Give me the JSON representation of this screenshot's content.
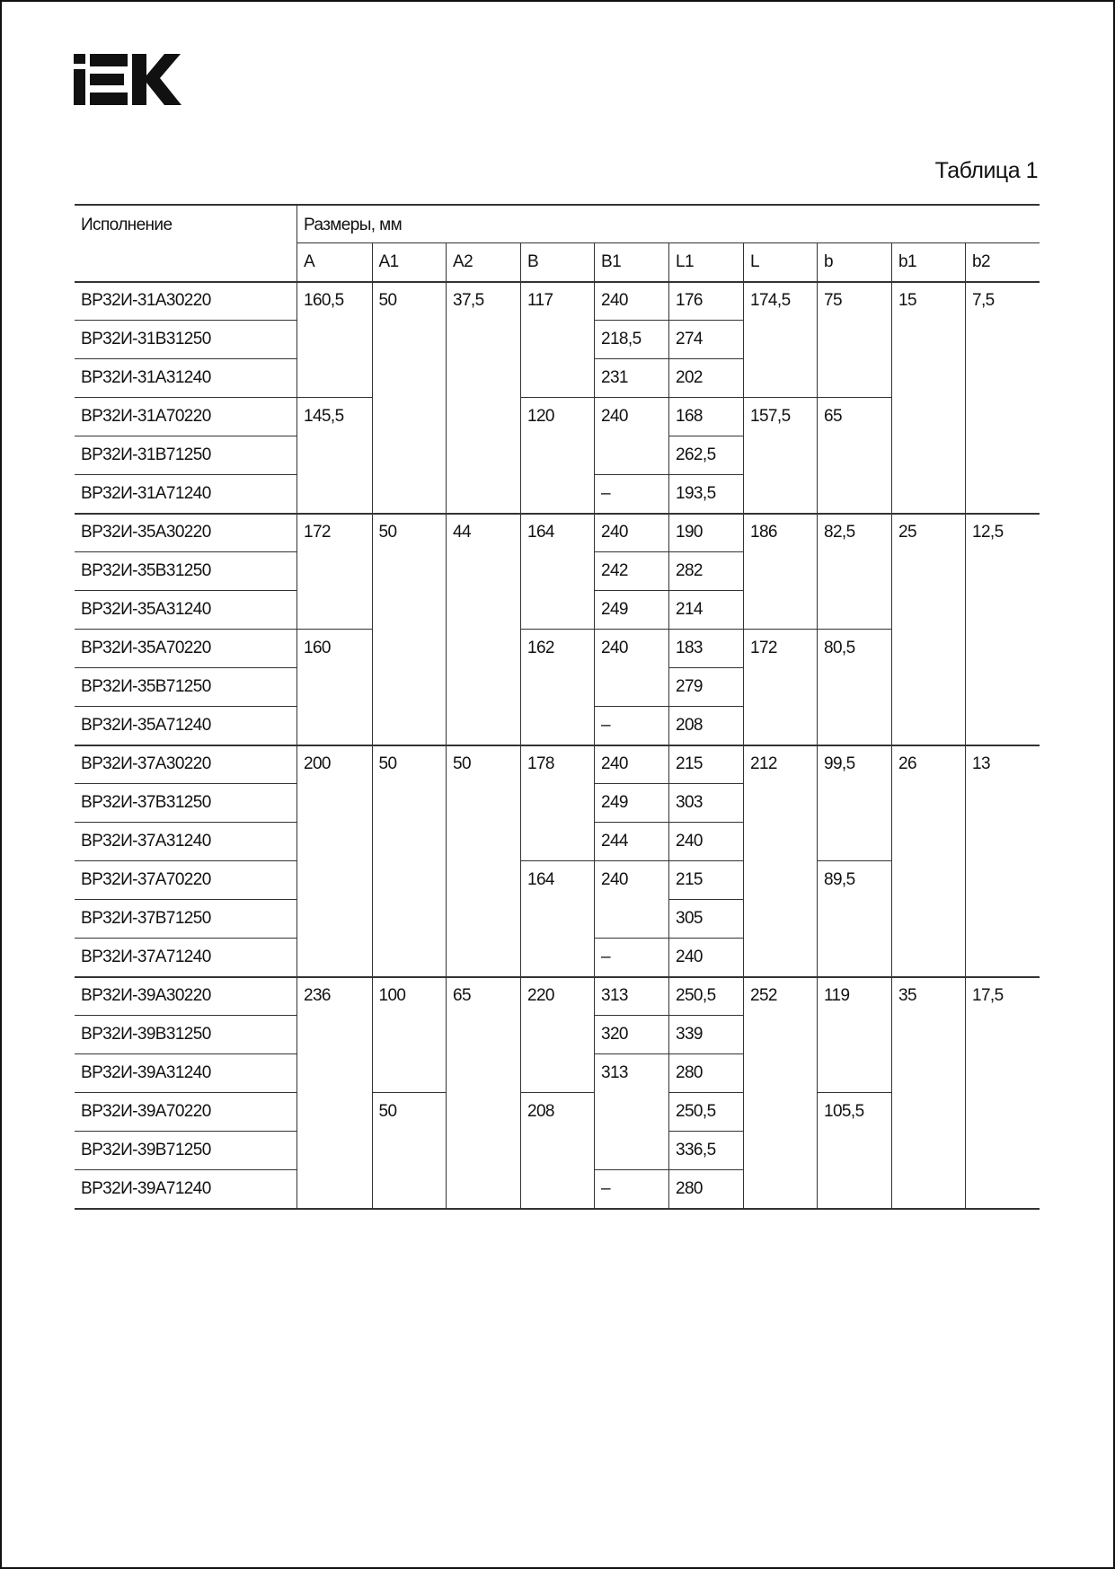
{
  "logo_text": "IEK",
  "title": "Таблица 1",
  "header": {
    "variant": "Исполнение",
    "dimensions": "Размеры, мм",
    "columns": [
      "A",
      "A1",
      "A2",
      "B",
      "B1",
      "L1",
      "L",
      "b",
      "b1",
      "b2"
    ]
  },
  "groups": [
    {
      "variants": [
        "ВР32И-31А30220",
        "ВР32И-31В31250",
        "ВР32И-31А31240",
        "ВР32И-31А70220",
        "ВР32И-31В71250",
        "ВР32И-31А71240"
      ],
      "cells": [
        [
          [
            "160,5",
            3
          ],
          [
            "145,5",
            3
          ]
        ],
        [
          [
            "50",
            6
          ]
        ],
        [
          [
            "37,5",
            6
          ]
        ],
        [
          [
            "117",
            3
          ],
          [
            "120",
            3
          ]
        ],
        [
          [
            "240",
            1
          ],
          [
            "218,5",
            1
          ],
          [
            "231",
            1
          ],
          [
            "240",
            2
          ],
          [
            "–",
            1
          ]
        ],
        [
          [
            "176",
            1
          ],
          [
            "274",
            1
          ],
          [
            "202",
            1
          ],
          [
            "168",
            1
          ],
          [
            "262,5",
            1
          ],
          [
            "193,5",
            1
          ]
        ],
        [
          [
            "174,5",
            3
          ],
          [
            "157,5",
            3
          ]
        ],
        [
          [
            "75",
            3
          ],
          [
            "65",
            3
          ]
        ],
        [
          [
            "15",
            6
          ]
        ],
        [
          [
            "7,5",
            6
          ]
        ]
      ]
    },
    {
      "variants": [
        "ВР32И-35А30220",
        "ВР32И-35В31250",
        "ВР32И-35А31240",
        "ВР32И-35А70220",
        "ВР32И-35В71250",
        "ВР32И-35А71240"
      ],
      "cells": [
        [
          [
            "172",
            3
          ],
          [
            "160",
            3
          ]
        ],
        [
          [
            "50",
            6
          ]
        ],
        [
          [
            "44",
            6
          ]
        ],
        [
          [
            "164",
            3
          ],
          [
            "162",
            3
          ]
        ],
        [
          [
            "240",
            1
          ],
          [
            "242",
            1
          ],
          [
            "249",
            1
          ],
          [
            "240",
            2
          ],
          [
            "–",
            1
          ]
        ],
        [
          [
            "190",
            1
          ],
          [
            "282",
            1
          ],
          [
            "214",
            1
          ],
          [
            "183",
            1
          ],
          [
            "279",
            1
          ],
          [
            "208",
            1
          ]
        ],
        [
          [
            "186",
            3
          ],
          [
            "172",
            3
          ]
        ],
        [
          [
            "82,5",
            3
          ],
          [
            "80,5",
            3
          ]
        ],
        [
          [
            "25",
            6
          ]
        ],
        [
          [
            "12,5",
            6
          ]
        ]
      ]
    },
    {
      "variants": [
        "ВР32И-37А30220",
        "ВР32И-37В31250",
        "ВР32И-37А31240",
        "ВР32И-37А70220",
        "ВР32И-37В71250",
        "ВР32И-37А71240"
      ],
      "cells": [
        [
          [
            "200",
            6
          ]
        ],
        [
          [
            "50",
            6
          ]
        ],
        [
          [
            "50",
            6
          ]
        ],
        [
          [
            "178",
            3
          ],
          [
            "164",
            3
          ]
        ],
        [
          [
            "240",
            1
          ],
          [
            "249",
            1
          ],
          [
            "244",
            1
          ],
          [
            "240",
            2
          ],
          [
            "–",
            1
          ]
        ],
        [
          [
            "215",
            1
          ],
          [
            "303",
            1
          ],
          [
            "240",
            1
          ],
          [
            "215",
            1
          ],
          [
            "305",
            1
          ],
          [
            "240",
            1
          ]
        ],
        [
          [
            "212",
            6
          ]
        ],
        [
          [
            "99,5",
            3
          ],
          [
            "89,5",
            3
          ]
        ],
        [
          [
            "26",
            6
          ]
        ],
        [
          [
            "13",
            6
          ]
        ]
      ]
    },
    {
      "variants": [
        "ВР32И-39А30220",
        "ВР32И-39В31250",
        "ВР32И-39А31240",
        "ВР32И-39А70220",
        "ВР32И-39В71250",
        "ВР32И-39А71240"
      ],
      "cells": [
        [
          [
            "236",
            6
          ]
        ],
        [
          [
            "100",
            3
          ],
          [
            "50",
            3
          ]
        ],
        [
          [
            "65",
            6
          ]
        ],
        [
          [
            "220",
            3
          ],
          [
            "208",
            3
          ]
        ],
        [
          [
            "313",
            1
          ],
          [
            "320",
            1
          ],
          [
            "313",
            3
          ],
          [
            "–",
            1
          ]
        ],
        [
          [
            "250,5",
            1
          ],
          [
            "339",
            1
          ],
          [
            "280",
            1
          ],
          [
            "250,5",
            1
          ],
          [
            "336,5",
            1
          ],
          [
            "280",
            1
          ]
        ],
        [
          [
            "252",
            6
          ]
        ],
        [
          [
            "119",
            3
          ],
          [
            "105,5",
            3
          ]
        ],
        [
          [
            "35",
            6
          ]
        ],
        [
          [
            "17,5",
            6
          ]
        ]
      ]
    }
  ]
}
